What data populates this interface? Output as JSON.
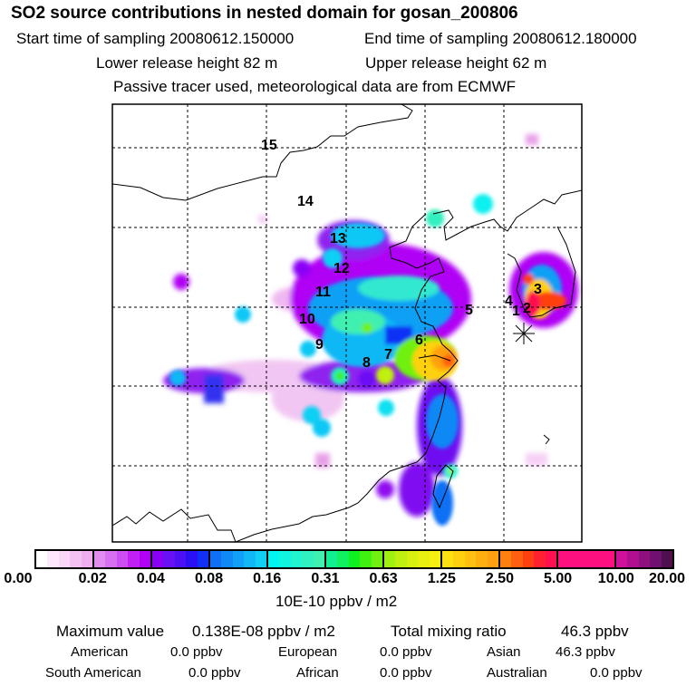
{
  "header": {
    "title": "SO2 source contributions in nested domain for gosan_200806",
    "start_label": "Start time of sampling 20080612.150000",
    "end_label": "End time of sampling 20080612.180000",
    "lower_label": "Lower release height   82 m",
    "upper_label": "Upper release height   62 m",
    "note": "Passive tracer used, meteorological data are from ECMWF"
  },
  "map": {
    "source_labels": [
      "1",
      "2",
      "3",
      "4",
      "5",
      "6",
      "7",
      "8",
      "9",
      "10",
      "11",
      "12",
      "13",
      "14",
      "15"
    ],
    "receptor_marker": "asterisk-star-icon"
  },
  "colorbar": {
    "ticks": [
      "0.00",
      "0.02",
      "0.04",
      "0.08",
      "0.16",
      "0.31",
      "0.63",
      "1.25",
      "2.50",
      "5.00",
      "10.00",
      "20.00"
    ],
    "units": "10E-10 ppbv / m2",
    "segments": [
      [
        "#ffffff",
        "#fde8fb",
        "#f9d6f7",
        "#f4c2f2",
        "#efaef0"
      ],
      [
        "#e08cf0",
        "#d770f0",
        "#cc4ef2",
        "#c020f5",
        "#b000f5"
      ],
      [
        "#8a00f5",
        "#6a10f5",
        "#4c10f5",
        "#2a10f5",
        "#1030f5"
      ],
      [
        "#1070f5",
        "#1088f5",
        "#10a0f5",
        "#10b8f5",
        "#10d0f5"
      ],
      [
        "#00f5f0",
        "#10f5e0",
        "#20f5d0",
        "#30f0c0",
        "#40f0b0"
      ],
      [
        "#10f090",
        "#10f060",
        "#10f020",
        "#40f010",
        "#70f010"
      ],
      [
        "#a0f010",
        "#c0f010",
        "#d8f010",
        "#e8f010",
        "#f5f010"
      ],
      [
        "#ffe010",
        "#ffd010",
        "#ffc010",
        "#ffb010",
        "#ffa010"
      ],
      [
        "#ff8010",
        "#ff6010",
        "#ff4010",
        "#ff2030",
        "#ff1050"
      ],
      [
        "#ff1080",
        "#ff1080",
        "#ff1080",
        "#ff1080",
        "#ff1080"
      ],
      [
        "#d0109a",
        "#b01090",
        "#901080",
        "#701070",
        "#501050"
      ]
    ]
  },
  "summary": {
    "max_label": "Maximum value",
    "max_value": "0.138E-08 ppbv / m2",
    "total_label": "Total mixing ratio",
    "total_value": "46.3 ppbv",
    "rows": [
      {
        "label": "American",
        "value": "0.0 ppbv"
      },
      {
        "label": "European",
        "value": "0.0 ppbv"
      },
      {
        "label": "Asian",
        "value": "46.3 ppbv"
      },
      {
        "label": "South American",
        "value": "0.0 ppbv"
      },
      {
        "label": "African",
        "value": "0.0 ppbv"
      },
      {
        "label": "Australian",
        "value": "0.0 ppbv"
      }
    ]
  }
}
